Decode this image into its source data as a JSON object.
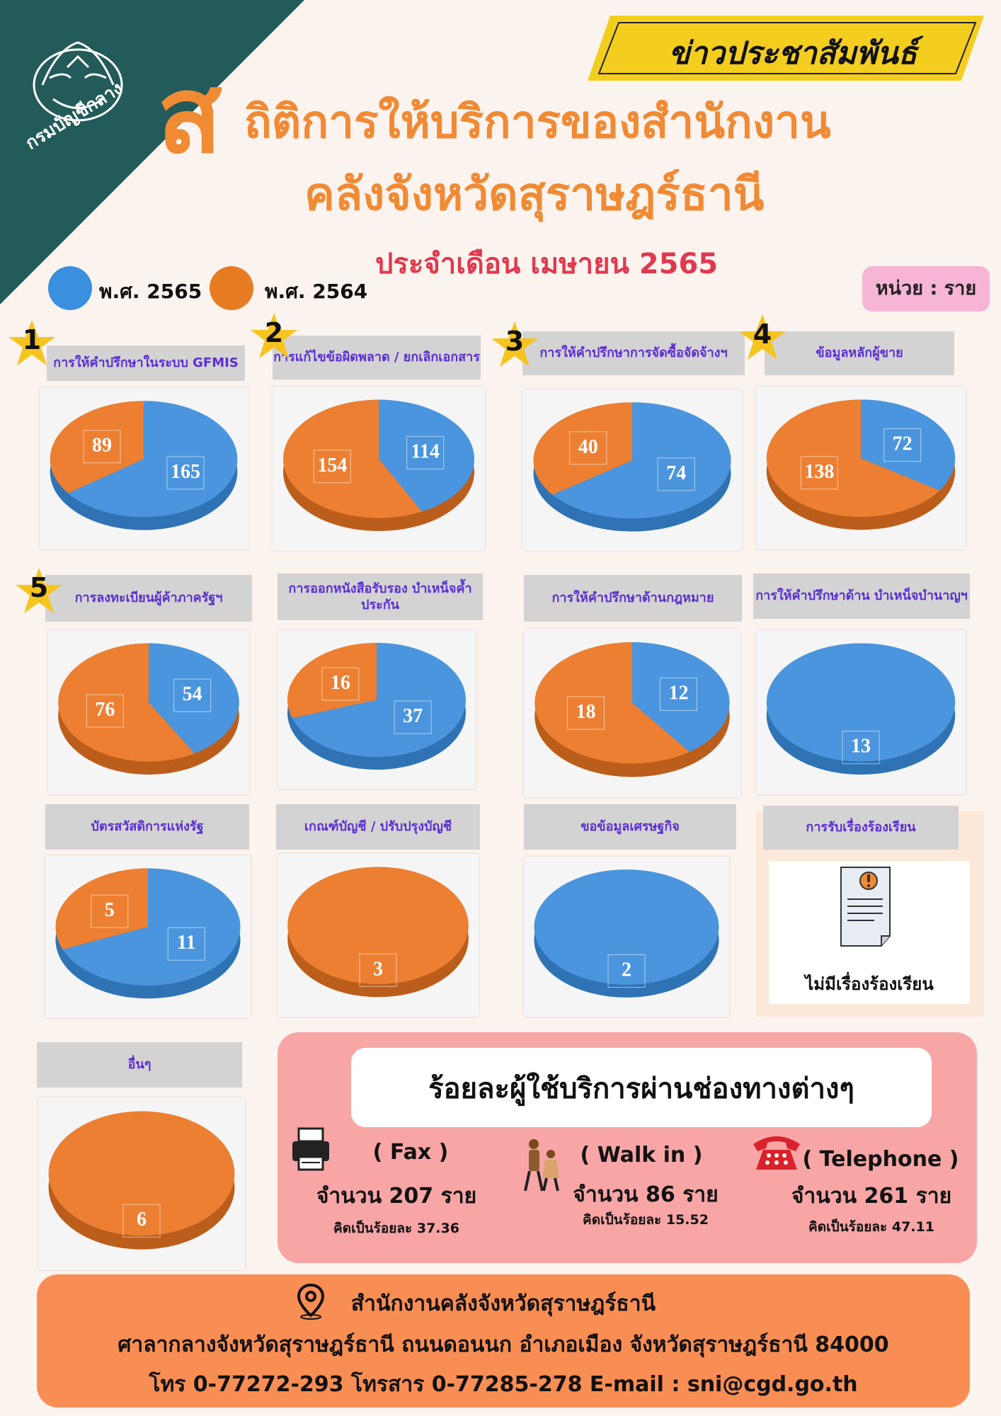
{
  "header": {
    "logo_text": "กรมบัญชีกลาง",
    "banner": "ข่าวประชาสัมพันธ์",
    "title_initial": "ส",
    "title_line1": "ถิติการให้บริการของสำนักงาน",
    "title_line2": "คลังจังหวัดสุราษฎร์ธานี",
    "subtitle": "ประจำเดือน เมษายน 2565"
  },
  "legend": {
    "items": [
      {
        "label": "พ.ศ. 2565",
        "color": "#3a8fde"
      },
      {
        "label": "พ.ศ. 2564",
        "color": "#e87c22"
      }
    ],
    "unit": "หน่วย : ราย"
  },
  "colors": {
    "y2565": "#4a95dd",
    "y2564": "#ec7f31",
    "gray": "#d3d3d3",
    "accent": "#f08a33",
    "subtitle": "#e0394f"
  },
  "chart_data": [
    {
      "type": "pie",
      "rank": "1",
      "title": "การให้คำปรึกษาในระบบ GFMIS",
      "series": [
        {
          "name": "พ.ศ. 2565",
          "value": 165
        },
        {
          "name": "พ.ศ. 2564",
          "value": 89
        }
      ]
    },
    {
      "type": "pie",
      "rank": "2",
      "title": "การแก้ไขข้อผิดพลาด / ยกเลิกเอกสาร",
      "series": [
        {
          "name": "พ.ศ. 2565",
          "value": 114
        },
        {
          "name": "พ.ศ. 2564",
          "value": 154
        }
      ]
    },
    {
      "type": "pie",
      "rank": "3",
      "title": "การให้คำปรึกษาการจัดซื้อจัดจ้างฯ",
      "series": [
        {
          "name": "พ.ศ. 2565",
          "value": 74
        },
        {
          "name": "พ.ศ. 2564",
          "value": 40
        }
      ]
    },
    {
      "type": "pie",
      "rank": "4",
      "title": "ข้อมูลหลักผู้ขาย",
      "series": [
        {
          "name": "พ.ศ. 2565",
          "value": 72
        },
        {
          "name": "พ.ศ. 2564",
          "value": 138
        }
      ]
    },
    {
      "type": "pie",
      "rank": "5",
      "title": "การลงทะเบียนผู้ค้าภาครัฐฯ",
      "series": [
        {
          "name": "พ.ศ. 2565",
          "value": 54
        },
        {
          "name": "พ.ศ. 2564",
          "value": 76
        }
      ]
    },
    {
      "type": "pie",
      "rank": "",
      "title": "การออกหนังสือรับรอง บำเหน็จค้ำประกัน",
      "series": [
        {
          "name": "พ.ศ. 2565",
          "value": 37
        },
        {
          "name": "พ.ศ. 2564",
          "value": 16
        }
      ]
    },
    {
      "type": "pie",
      "rank": "",
      "title": "การให้คำปรึกษาด้านกฎหมาย",
      "series": [
        {
          "name": "พ.ศ. 2565",
          "value": 12
        },
        {
          "name": "พ.ศ. 2564",
          "value": 18
        }
      ]
    },
    {
      "type": "pie",
      "rank": "",
      "title": "การให้คำปรึกษาด้าน บำเหน็จบำนาญฯ",
      "series": [
        {
          "name": "พ.ศ. 2565",
          "value": 13
        }
      ]
    },
    {
      "type": "pie",
      "rank": "",
      "title": "บัตรสวัสดิการแห่งรัฐ",
      "series": [
        {
          "name": "พ.ศ. 2565",
          "value": 11
        },
        {
          "name": "พ.ศ. 2564",
          "value": 5
        }
      ]
    },
    {
      "type": "pie",
      "rank": "",
      "title": "เกณฑ์บัญชี / ปรับปรุงบัญชี",
      "series": [
        {
          "name": "พ.ศ. 2564",
          "value": 3
        }
      ]
    },
    {
      "type": "pie",
      "rank": "",
      "title": "ขอข้อมูลเศรษฐกิจ",
      "series": [
        {
          "name": "พ.ศ. 2565",
          "value": 2
        }
      ]
    },
    {
      "type": "pie",
      "rank": "",
      "title": "อื่นๆ",
      "series": [
        {
          "name": "พ.ศ. 2564",
          "value": 6
        }
      ]
    }
  ],
  "complaint": {
    "title": "การรับเรื่องร้องเรียน",
    "text": "ไม่มีเรื่องร้องเรียน"
  },
  "channels": {
    "title": "ร้อยละผู้ใช้บริการผ่านช่องทางต่างๆ",
    "items": [
      {
        "name": "( Fax )",
        "count": "จำนวน 207 ราย",
        "percent": "คิดเป็นร้อยละ 37.36",
        "bg": "#ffe38e"
      },
      {
        "name": "( Walk in )",
        "count": "จำนวน 86 ราย",
        "percent": "คิดเป็นร้อยละ 15.52",
        "bg": "#7ff5ea"
      },
      {
        "name": "( Telephone )",
        "count": "จำนวน 261 ราย",
        "percent": "คิดเป็นร้อยละ 47.11",
        "bg": "#f9b3e1"
      }
    ]
  },
  "footer": {
    "office": "สำนักงานคลังจังหวัดสุราษฎร์ธานี",
    "address": "ศาลากลางจังหวัดสุราษฎร์ธานี ถนนดอนนก อำเภอเมือง จังหวัดสุราษฎร์ธานี 84000",
    "contact": "โทร 0-77272-293  โทรสาร 0-77285-278  E-mail : sni@cgd.go.th"
  }
}
